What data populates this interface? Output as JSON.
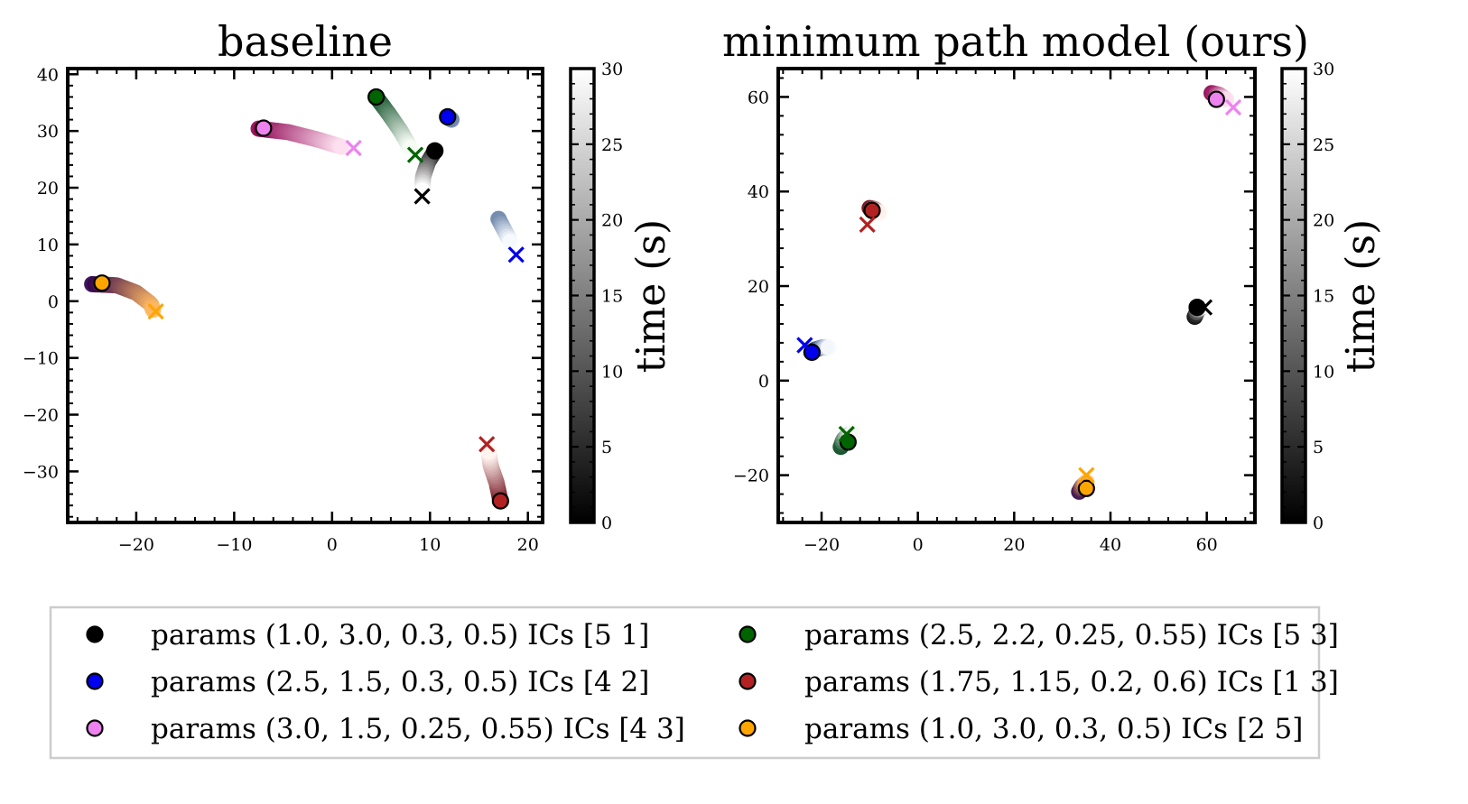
{
  "chart_data": [
    {
      "type": "scatter",
      "title": "baseline",
      "xlabel": "",
      "ylabel": "",
      "xlim": [
        -27,
        21.5
      ],
      "ylim": [
        -39,
        41
      ],
      "xticks": [
        -20,
        -10,
        0,
        10,
        20
      ],
      "yticks": [
        -30,
        -20,
        -10,
        0,
        10,
        20,
        30,
        40
      ],
      "colorbar": {
        "label": "time (s)",
        "range": [
          0,
          30
        ],
        "ticks": [
          0,
          5,
          10,
          15,
          20,
          25,
          30
        ],
        "cmap": "gray"
      },
      "series": [
        {
          "name": "params (1.0, 3.0, 0.3, 0.5) ICs [5 1]",
          "color": "#000000",
          "cmap": [
            "#000000",
            "#ffffff"
          ],
          "start": [
            10.5,
            26.5
          ],
          "end": [
            9.2,
            18.5
          ],
          "path": [
            [
              10.5,
              26.5
            ],
            [
              9.8,
              24.5
            ],
            [
              9.3,
              22.0
            ],
            [
              9.2,
              19.5
            ]
          ]
        },
        {
          "name": "params (2.5, 1.5, 0.3, 0.5) ICs [4 2]",
          "color": "#0000ee",
          "cmap": [
            "#08306b",
            "#f7fbff"
          ],
          "start": [
            11.8,
            32.5
          ],
          "end": [
            18.8,
            8.2
          ],
          "path": [
            [
              11.8,
              32.5
            ],
            [
              12.2,
              32.0
            ]
          ],
          "path2": [
            [
              17.0,
              14.5
            ],
            [
              17.6,
              12.5
            ],
            [
              18.2,
              10.5
            ]
          ]
        },
        {
          "name": "params (3.0, 1.5, 0.25, 0.55) ICs [4 3]",
          "color": "#ee82ee",
          "cmap": [
            "#8e0152",
            "#fde0ef"
          ],
          "start": [
            -7.0,
            30.5
          ],
          "end": [
            2.2,
            27.0
          ],
          "path": [
            [
              -7.5,
              30.4
            ],
            [
              -4.5,
              29.8
            ],
            [
              -1.5,
              28.5
            ],
            [
              1.0,
              27.2
            ]
          ]
        },
        {
          "name": "params (2.5, 2.2, 0.25, 0.55) ICs [5 3]",
          "color": "#006400",
          "cmap": [
            "#00441b",
            "#f7fcf5"
          ],
          "start": [
            4.5,
            36.0
          ],
          "end": [
            8.5,
            25.8
          ],
          "path": [
            [
              4.5,
              36.0
            ],
            [
              5.8,
              33.0
            ],
            [
              7.0,
              30.0
            ],
            [
              8.0,
              27.0
            ]
          ]
        },
        {
          "name": "params (1.75, 1.15, 0.2, 0.6) ICs [1 3]",
          "color": "#b22222",
          "cmap": [
            "#67000d",
            "#fff5f0"
          ],
          "start": [
            17.2,
            -35.2
          ],
          "end": [
            15.8,
            -25.2
          ],
          "path": [
            [
              17.2,
              -35.2
            ],
            [
              16.8,
              -32.0
            ],
            [
              16.2,
              -29.0
            ],
            [
              16.0,
              -26.5
            ]
          ]
        },
        {
          "name": "params (1.0, 3.0, 0.3, 0.5) ICs [2 5]",
          "color": "#ffa500",
          "cmap": [
            "#2d004b",
            "#fdb863"
          ],
          "start": [
            -23.5,
            3.2
          ],
          "end": [
            -18.0,
            -1.8
          ],
          "path": [
            [
              -24.5,
              3.0
            ],
            [
              -22.0,
              2.8
            ],
            [
              -20.0,
              1.5
            ],
            [
              -18.5,
              -0.5
            ],
            [
              -18.3,
              -1.5
            ]
          ]
        }
      ]
    },
    {
      "type": "scatter",
      "title": "minimum path model (ours)",
      "xlabel": "",
      "ylabel": "",
      "xlim": [
        -29,
        70
      ],
      "ylim": [
        -30,
        66
      ],
      "xticks": [
        -20,
        0,
        20,
        40,
        60
      ],
      "yticks": [
        -20,
        0,
        20,
        40,
        60
      ],
      "colorbar": {
        "label": "time (s)",
        "range": [
          0,
          30
        ],
        "ticks": [
          0,
          5,
          10,
          15,
          20,
          25,
          30
        ],
        "cmap": "gray"
      },
      "series": [
        {
          "name": "params (1.0, 3.0, 0.3, 0.5) ICs [5 1]",
          "color": "#000000",
          "cmap": [
            "#000000",
            "#ffffff"
          ],
          "start": [
            58.0,
            15.5
          ],
          "end": [
            59.5,
            15.5
          ],
          "path": [
            [
              57.5,
              13.5
            ],
            [
              58.2,
              15.0
            ],
            [
              59.5,
              15.8
            ]
          ]
        },
        {
          "name": "params (2.5, 1.5, 0.3, 0.5) ICs [4 2]",
          "color": "#0000ee",
          "cmap": [
            "#08306b",
            "#f7fbff"
          ],
          "start": [
            -22.0,
            6.0
          ],
          "end": [
            -23.5,
            7.5
          ],
          "path": [
            [
              -21.5,
              6.5
            ],
            [
              -20.0,
              7.0
            ],
            [
              -18.5,
              7.0
            ]
          ]
        },
        {
          "name": "params (3.0, 1.5, 0.25, 0.55) ICs [4 3]",
          "color": "#ee82ee",
          "cmap": [
            "#8e0152",
            "#fde0ef"
          ],
          "start": [
            62.0,
            59.5
          ],
          "end": [
            65.5,
            57.8
          ],
          "path": [
            [
              61.0,
              60.8
            ],
            [
              62.5,
              60.5
            ],
            [
              64.0,
              59.5
            ]
          ]
        },
        {
          "name": "params (2.5, 2.2, 0.25, 0.55) ICs [5 3]",
          "color": "#006400",
          "cmap": [
            "#00441b",
            "#f7fcf5"
          ],
          "start": [
            -14.5,
            -13.0
          ],
          "end": [
            -14.8,
            -11.3
          ],
          "path": [
            [
              -16.0,
              -14.0
            ],
            [
              -15.5,
              -12.5
            ],
            [
              -14.5,
              -11.5
            ],
            [
              -13.5,
              -11.0
            ]
          ]
        },
        {
          "name": "params (1.75, 1.15, 0.2, 0.6) ICs [1 3]",
          "color": "#b22222",
          "cmap": [
            "#67000d",
            "#fff5f0"
          ],
          "start": [
            -9.5,
            36.0
          ],
          "end": [
            -10.5,
            33.0
          ],
          "path": [
            [
              -10.0,
              36.5
            ],
            [
              -9.0,
              36.3
            ],
            [
              -8.0,
              35.5
            ]
          ]
        },
        {
          "name": "params (1.0, 3.0, 0.3, 0.5) ICs [2 5]",
          "color": "#ffa500",
          "cmap": [
            "#2d004b",
            "#fdb863"
          ],
          "start": [
            35.0,
            -22.8
          ],
          "end": [
            35.0,
            -20.0
          ],
          "path": [
            [
              33.5,
              -23.5
            ],
            [
              34.0,
              -22.5
            ],
            [
              35.0,
              -21.5
            ]
          ]
        }
      ]
    }
  ],
  "legend": {
    "entries": [
      {
        "label": "params (1.0, 3.0, 0.3, 0.5) ICs [5 1]",
        "color": "#000000"
      },
      {
        "label": "params (2.5, 2.2, 0.25, 0.55) ICs [5 3]",
        "color": "#006400"
      },
      {
        "label": "params (2.5, 1.5, 0.3, 0.5) ICs [4 2]",
        "color": "#0000ee"
      },
      {
        "label": "params (1.75, 1.15, 0.2, 0.6) ICs [1 3]",
        "color": "#b22222"
      },
      {
        "label": "params (3.0, 1.5, 0.25, 0.55) ICs [4 3]",
        "color": "#ee82ee"
      },
      {
        "label": "params (1.0, 3.0, 0.3, 0.5) ICs [2 5]",
        "color": "#ffa500"
      }
    ]
  }
}
